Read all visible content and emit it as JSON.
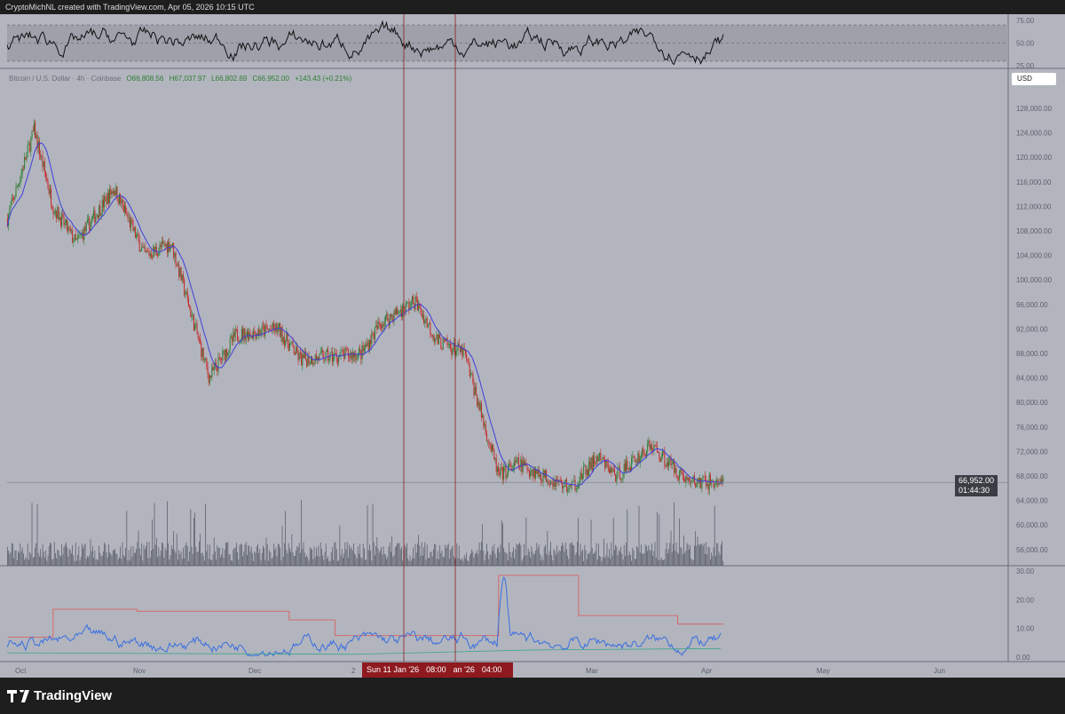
{
  "header": {
    "attribution": "CryptoMichNL created with TradingView.com, Apr 05, 2026 10:15 UTC"
  },
  "legend": {
    "symbol": "Bitcoin / U.S. Dollar · 4h · Coinbase",
    "open": "O66,808.56",
    "high": "H67,037.97",
    "low": "L66,802.69",
    "close": "C66,952.00",
    "change": "+143.43 (+0.21%)"
  },
  "currency_button": "USD",
  "last_price": {
    "price": "66,952.00",
    "countdown": "01:44:30"
  },
  "crosshair_time": {
    "left": "Sun 11 Jan '26",
    "left_time": "08:00",
    "right": "an '26",
    "right_time": "04:00"
  },
  "footer": {
    "brand": "TradingView"
  },
  "colors": {
    "background": "#b2b5be",
    "ma": "#3f3fd8",
    "up": "#2e7d32",
    "down": "#c62828",
    "crosshair": "#8e1a1f",
    "adx_upper": "#e05555",
    "adx_main": "#3a6fe0",
    "adx_lower": "#3aa58a"
  },
  "chart_data": {
    "type": "candlestick",
    "price_axis": {
      "ticks": [
        "128,000.00",
        "124,000.00",
        "120,000.00",
        "116,000.00",
        "112,000.00",
        "108,000.00",
        "104,000.00",
        "100,000.00",
        "96,000.00",
        "92,000.00",
        "88,000.00",
        "84,000.00",
        "80,000.00",
        "76,000.00",
        "72,000.00",
        "68,000.00",
        "64,000.00",
        "60,000.00",
        "56,000.00"
      ],
      "values": [
        128000,
        124000,
        120000,
        116000,
        112000,
        108000,
        104000,
        100000,
        96000,
        92000,
        88000,
        84000,
        80000,
        76000,
        72000,
        68000,
        64000,
        60000,
        56000
      ]
    },
    "rsi_axis": {
      "ticks": [
        "75.00",
        "50.00",
        "25.00"
      ],
      "values": [
        75,
        50,
        25
      ]
    },
    "lower_axis": {
      "ticks": [
        "30.00",
        "20.00",
        "10.00",
        "0.00"
      ],
      "values": [
        30,
        20,
        10,
        0
      ]
    },
    "time_axis": [
      "Oct",
      "Nov",
      "Dec",
      "2",
      "Mar",
      "Apr",
      "May",
      "Jun"
    ],
    "price_path": [
      [
        "2025-09-29",
        110000
      ],
      [
        "2025-10-06",
        124500
      ],
      [
        "2025-10-11",
        112000
      ],
      [
        "2025-10-17",
        106000
      ],
      [
        "2025-10-27",
        115000
      ],
      [
        "2025-11-04",
        104000
      ],
      [
        "2025-11-11",
        106000
      ],
      [
        "2025-11-21",
        84000
      ],
      [
        "2025-11-28",
        91000
      ],
      [
        "2025-12-09",
        92000
      ],
      [
        "2025-12-15",
        87000
      ],
      [
        "2025-12-31",
        88000
      ],
      [
        "2026-01-05",
        93000
      ],
      [
        "2026-01-14",
        96500
      ],
      [
        "2026-01-20",
        90000
      ],
      [
        "2026-01-27",
        88000
      ],
      [
        "2026-02-05",
        68000
      ],
      [
        "2026-02-10",
        70000
      ],
      [
        "2026-02-24",
        66000
      ],
      [
        "2026-03-03",
        71000
      ],
      [
        "2026-03-08",
        68000
      ],
      [
        "2026-03-17",
        73000
      ],
      [
        "2026-03-27",
        67000
      ],
      [
        "2026-04-05",
        66952
      ]
    ],
    "lower_upper_steps": [
      [
        "2025-09-29",
        7
      ],
      [
        "2025-10-11",
        16.7
      ],
      [
        "2025-11-02",
        16
      ],
      [
        "2025-12-12",
        13
      ],
      [
        "2025-12-24",
        7.5
      ],
      [
        "2026-02-05",
        28.5
      ],
      [
        "2026-02-26",
        14.5
      ],
      [
        "2026-03-24",
        11.5
      ],
      [
        "2026-04-05",
        11.5
      ]
    ]
  }
}
